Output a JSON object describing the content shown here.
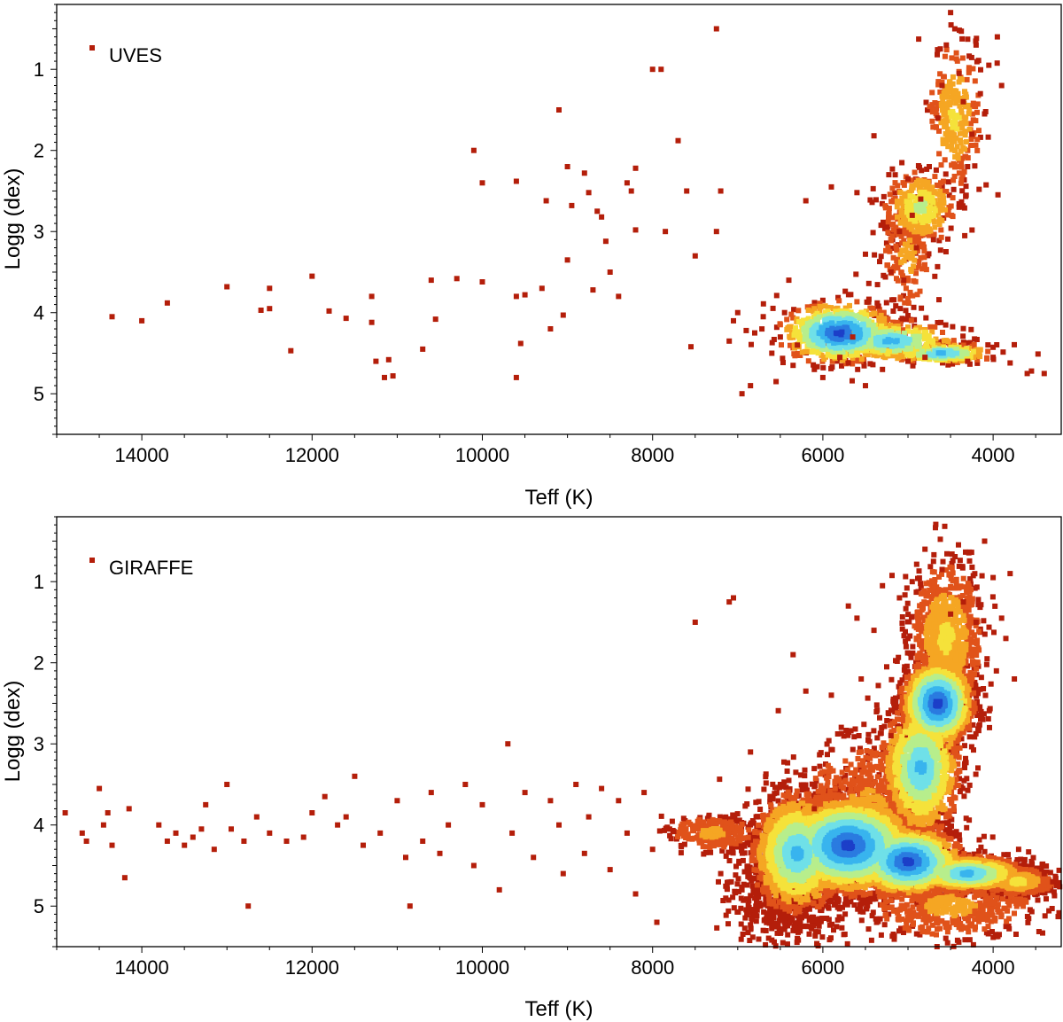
{
  "chart_data": [
    {
      "type": "scatter",
      "name": "uves-panel",
      "legend": "UVES",
      "xlabel": "Teff (K)",
      "ylabel": "Logg (dex)",
      "xlim": [
        15000,
        3200
      ],
      "ylim": [
        5.5,
        0.2
      ],
      "x_reversed": true,
      "y_reversed": true,
      "x_ticks": [
        14000,
        12000,
        10000,
        8000,
        6000,
        4000
      ],
      "y_ticks": [
        1,
        2,
        3,
        4,
        5
      ],
      "color_map": "density (dark red = sparse, blue = dense)",
      "points": [
        [
          14350,
          4.05
        ],
        [
          14000,
          4.1
        ],
        [
          13700,
          3.88
        ],
        [
          13000,
          3.68
        ],
        [
          12600,
          3.97
        ],
        [
          12500,
          3.7
        ],
        [
          12500,
          3.95
        ],
        [
          12250,
          4.47
        ],
        [
          12000,
          3.55
        ],
        [
          11800,
          3.98
        ],
        [
          11600,
          4.07
        ],
        [
          11300,
          4.12
        ],
        [
          11300,
          3.8
        ],
        [
          11250,
          4.6
        ],
        [
          11150,
          4.8
        ],
        [
          11100,
          4.58
        ],
        [
          11050,
          4.78
        ],
        [
          10700,
          4.45
        ],
        [
          10600,
          3.6
        ],
        [
          10550,
          4.08
        ],
        [
          10300,
          3.58
        ],
        [
          10100,
          2.0
        ],
        [
          10000,
          3.62
        ],
        [
          10000,
          2.4
        ],
        [
          9600,
          3.8
        ],
        [
          9600,
          2.38
        ],
        [
          9600,
          4.8
        ],
        [
          9550,
          4.38
        ],
        [
          9500,
          3.78
        ],
        [
          9300,
          3.7
        ],
        [
          9250,
          2.62
        ],
        [
          9200,
          4.2
        ],
        [
          9100,
          1.5
        ],
        [
          9050,
          4.03
        ],
        [
          9000,
          2.2
        ],
        [
          9000,
          3.35
        ],
        [
          8950,
          2.68
        ],
        [
          8800,
          2.28
        ],
        [
          8750,
          2.52
        ],
        [
          8700,
          3.72
        ],
        [
          8650,
          2.75
        ],
        [
          8600,
          2.82
        ],
        [
          8550,
          3.12
        ],
        [
          8500,
          3.5
        ],
        [
          8400,
          3.8
        ],
        [
          8300,
          2.4
        ],
        [
          8250,
          2.5
        ],
        [
          8200,
          2.98
        ],
        [
          8200,
          2.22
        ],
        [
          8000,
          1.0
        ],
        [
          7900,
          1.0
        ],
        [
          7850,
          3.0
        ],
        [
          7700,
          1.88
        ],
        [
          7600,
          2.5
        ],
        [
          7550,
          4.42
        ],
        [
          7500,
          3.3
        ],
        [
          7250,
          0.5
        ],
        [
          7250,
          3.0
        ],
        [
          7200,
          2.5
        ],
        [
          7100,
          4.35
        ],
        [
          7050,
          4.1
        ],
        [
          7000,
          4.0
        ],
        [
          6950,
          5.0
        ],
        [
          6900,
          4.22
        ],
        [
          6850,
          4.9
        ],
        [
          6800,
          4.25
        ],
        [
          6700,
          4.05
        ],
        [
          6600,
          4.5
        ],
        [
          6550,
          4.85
        ],
        [
          6500,
          4.3
        ],
        [
          6450,
          4.0
        ],
        [
          6400,
          3.6
        ],
        [
          6350,
          4.65
        ],
        [
          6300,
          4.4
        ],
        [
          6200,
          2.62
        ],
        [
          6100,
          4.7
        ],
        [
          6000,
          4.8
        ],
        [
          5900,
          2.45
        ],
        [
          5800,
          4.55
        ],
        [
          5700,
          4.62
        ],
        [
          5650,
          4.3
        ],
        [
          5600,
          2.52
        ],
        [
          5500,
          3.28
        ],
        [
          5500,
          4.9
        ],
        [
          5400,
          1.82
        ],
        [
          5350,
          3.92
        ],
        [
          5300,
          4.7
        ],
        [
          5200,
          3.5
        ],
        [
          5150,
          2.3
        ],
        [
          5100,
          3.0
        ],
        [
          5050,
          3.6
        ],
        [
          5000,
          2.35
        ],
        [
          5000,
          4.6
        ],
        [
          4950,
          2.8
        ],
        [
          4900,
          3.2
        ],
        [
          4850,
          2.6
        ],
        [
          4800,
          4.55
        ],
        [
          4750,
          2.2
        ],
        [
          4700,
          3.1
        ],
        [
          4650,
          1.6
        ],
        [
          4600,
          1.2
        ],
        [
          4550,
          0.7
        ],
        [
          4500,
          0.3
        ],
        [
          4450,
          0.5
        ],
        [
          4400,
          1.05
        ],
        [
          4400,
          2.7
        ],
        [
          4350,
          1.4
        ],
        [
          4300,
          2.2
        ],
        [
          4300,
          4.6
        ],
        [
          4250,
          1.8
        ],
        [
          4200,
          0.7
        ],
        [
          4150,
          1.3
        ],
        [
          4100,
          1.55
        ],
        [
          4050,
          0.95
        ],
        [
          4000,
          4.55
        ],
        [
          3950,
          0.6
        ],
        [
          3900,
          1.2
        ],
        [
          3800,
          4.62
        ],
        [
          3600,
          4.75
        ],
        [
          3550,
          4.72
        ],
        [
          3400,
          4.75
        ]
      ],
      "density_clumps": [
        {
          "teff": 5800,
          "logg": 4.25,
          "spread_teff": 330,
          "spread_logg": 0.18,
          "count": 700,
          "peak": "blue"
        },
        {
          "teff": 5200,
          "logg": 4.35,
          "spread_teff": 380,
          "spread_logg": 0.12,
          "count": 350,
          "peak": "cyan"
        },
        {
          "teff": 4600,
          "logg": 4.5,
          "spread_teff": 300,
          "spread_logg": 0.06,
          "count": 200,
          "peak": "cyan"
        },
        {
          "teff": 4850,
          "logg": 2.7,
          "spread_teff": 200,
          "spread_logg": 0.22,
          "count": 350,
          "peak": "green"
        },
        {
          "teff": 4450,
          "logg": 1.6,
          "spread_teff": 150,
          "spread_logg": 0.45,
          "count": 250,
          "peak": "yellow"
        },
        {
          "teff": 5000,
          "logg": 3.3,
          "spread_teff": 150,
          "spread_logg": 0.35,
          "count": 150,
          "peak": "orange"
        }
      ]
    },
    {
      "type": "scatter",
      "name": "giraffe-panel",
      "legend": "GIRAFFE",
      "xlabel": "Teff (K)",
      "ylabel": "Logg (dex)",
      "xlim": [
        15000,
        3200
      ],
      "ylim": [
        5.5,
        0.2
      ],
      "x_reversed": true,
      "y_reversed": true,
      "x_ticks": [
        14000,
        12000,
        10000,
        8000,
        6000,
        4000
      ],
      "y_ticks": [
        1,
        2,
        3,
        4,
        5
      ],
      "color_map": "density (dark red = sparse, blue = dense)",
      "points": [
        [
          14900,
          3.85
        ],
        [
          14700,
          4.1
        ],
        [
          14650,
          4.2
        ],
        [
          14500,
          3.55
        ],
        [
          14450,
          4.0
        ],
        [
          14400,
          3.85
        ],
        [
          14350,
          4.25
        ],
        [
          14200,
          4.65
        ],
        [
          14150,
          3.8
        ],
        [
          13800,
          4.0
        ],
        [
          13700,
          4.2
        ],
        [
          13600,
          4.1
        ],
        [
          13500,
          4.25
        ],
        [
          13400,
          4.15
        ],
        [
          13300,
          4.05
        ],
        [
          13250,
          3.75
        ],
        [
          13150,
          4.3
        ],
        [
          13000,
          3.5
        ],
        [
          12950,
          4.05
        ],
        [
          12800,
          4.2
        ],
        [
          12750,
          5.0
        ],
        [
          12650,
          3.9
        ],
        [
          12500,
          4.1
        ],
        [
          12300,
          4.2
        ],
        [
          12100,
          4.15
        ],
        [
          12000,
          3.85
        ],
        [
          11850,
          3.65
        ],
        [
          11700,
          4.0
        ],
        [
          11600,
          3.9
        ],
        [
          11500,
          3.4
        ],
        [
          11400,
          4.25
        ],
        [
          11200,
          4.1
        ],
        [
          11000,
          3.7
        ],
        [
          10900,
          4.4
        ],
        [
          10850,
          5.0
        ],
        [
          10700,
          4.2
        ],
        [
          10600,
          3.6
        ],
        [
          10500,
          4.35
        ],
        [
          10400,
          4.0
        ],
        [
          10200,
          3.5
        ],
        [
          10100,
          4.5
        ],
        [
          10000,
          3.75
        ],
        [
          9800,
          4.8
        ],
        [
          9700,
          3.0
        ],
        [
          9650,
          4.1
        ],
        [
          9500,
          3.6
        ],
        [
          9400,
          4.4
        ],
        [
          9200,
          3.7
        ],
        [
          9100,
          4.0
        ],
        [
          9050,
          4.6
        ],
        [
          8900,
          3.5
        ],
        [
          8800,
          4.35
        ],
        [
          8750,
          3.9
        ],
        [
          8600,
          3.55
        ],
        [
          8500,
          4.55
        ],
        [
          8400,
          3.7
        ],
        [
          8300,
          4.1
        ],
        [
          8200,
          4.85
        ],
        [
          8100,
          3.6
        ],
        [
          8000,
          4.3
        ],
        [
          7950,
          5.2
        ],
        [
          7800,
          4.05
        ],
        [
          7500,
          1.5
        ],
        [
          7200,
          4.6
        ],
        [
          7100,
          1.25
        ],
        [
          7050,
          1.2
        ],
        [
          6950,
          4.8
        ],
        [
          6850,
          3.1
        ],
        [
          6700,
          5.3
        ],
        [
          6500,
          3.5
        ],
        [
          6350,
          1.9
        ],
        [
          6300,
          5.4
        ],
        [
          6200,
          2.35
        ],
        [
          6100,
          3.8
        ],
        [
          5900,
          2.4
        ],
        [
          5700,
          1.3
        ],
        [
          5600,
          1.45
        ],
        [
          5550,
          2.2
        ],
        [
          5400,
          1.6
        ],
        [
          5300,
          1.05
        ],
        [
          5250,
          2.05
        ],
        [
          5200,
          2.9
        ],
        [
          5100,
          1.2
        ],
        [
          5000,
          1.7
        ],
        [
          4950,
          1.0
        ],
        [
          4800,
          0.6
        ],
        [
          4700,
          0.75
        ],
        [
          4600,
          0.85
        ],
        [
          4500,
          1.4
        ],
        [
          4350,
          1.25
        ],
        [
          4200,
          1.5
        ],
        [
          4100,
          0.5
        ],
        [
          4000,
          0.95
        ],
        [
          3900,
          1.45
        ],
        [
          3850,
          1.7
        ],
        [
          3800,
          0.9
        ],
        [
          3750,
          2.2
        ],
        [
          3700,
          4.3
        ],
        [
          3550,
          4.45
        ],
        [
          3400,
          4.6
        ],
        [
          3300,
          4.7
        ]
      ],
      "density_clumps": [
        {
          "teff": 5700,
          "logg": 4.25,
          "spread_teff": 380,
          "spread_logg": 0.28,
          "count": 3200,
          "peak": "blue"
        },
        {
          "teff": 6300,
          "logg": 4.35,
          "spread_teff": 250,
          "spread_logg": 0.35,
          "count": 1500,
          "peak": "cyan"
        },
        {
          "teff": 5000,
          "logg": 4.45,
          "spread_teff": 300,
          "spread_logg": 0.2,
          "count": 1500,
          "peak": "blue"
        },
        {
          "teff": 4300,
          "logg": 4.6,
          "spread_teff": 320,
          "spread_logg": 0.1,
          "count": 1200,
          "peak": "cyan"
        },
        {
          "teff": 3700,
          "logg": 4.7,
          "spread_teff": 200,
          "spread_logg": 0.08,
          "count": 500,
          "peak": "yellow"
        },
        {
          "teff": 4650,
          "logg": 2.5,
          "spread_teff": 200,
          "spread_logg": 0.25,
          "count": 1600,
          "peak": "blue"
        },
        {
          "teff": 4850,
          "logg": 3.3,
          "spread_teff": 220,
          "spread_logg": 0.4,
          "count": 1200,
          "peak": "cyan"
        },
        {
          "teff": 4550,
          "logg": 1.7,
          "spread_teff": 200,
          "spread_logg": 0.45,
          "count": 900,
          "peak": "yellow"
        },
        {
          "teff": 5500,
          "logg": 3.8,
          "spread_teff": 400,
          "spread_logg": 0.4,
          "count": 700,
          "peak": "orange"
        },
        {
          "teff": 6400,
          "logg": 4.8,
          "spread_teff": 350,
          "spread_logg": 0.35,
          "count": 600,
          "peak": "red"
        },
        {
          "teff": 4500,
          "logg": 5.0,
          "spread_teff": 500,
          "spread_logg": 0.2,
          "count": 500,
          "peak": "orange"
        },
        {
          "teff": 7300,
          "logg": 4.1,
          "spread_teff": 250,
          "spread_logg": 0.1,
          "count": 250,
          "peak": "orange"
        }
      ]
    }
  ]
}
